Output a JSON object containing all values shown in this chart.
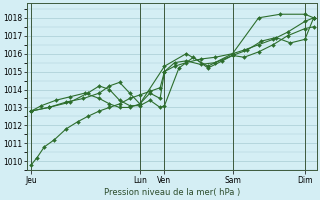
{
  "background_color": "#d4eef4",
  "grid_color": "#a8ccd4",
  "line_color": "#2d6e2d",
  "marker_color": "#2d6e2d",
  "xlabel": "Pression niveau de la mer( hPa )",
  "ylim": [
    1009.5,
    1018.8
  ],
  "yticks": [
    1010,
    1011,
    1012,
    1013,
    1014,
    1015,
    1016,
    1017,
    1018
  ],
  "xlim": [
    0,
    20
  ],
  "day_labels": [
    "Jeu",
    "Lun",
    "Ven",
    "Sam",
    "Dim"
  ],
  "day_tick_x": [
    0.3,
    7.8,
    9.5,
    14.2,
    19.2
  ],
  "vline_x": [
    0.3,
    7.8,
    9.5,
    14.2,
    19.2
  ],
  "s1_x": [
    0.3,
    0.7,
    1.2,
    1.9,
    2.7,
    3.5,
    4.2,
    5.0,
    5.7,
    6.4,
    7.1,
    7.8,
    8.5,
    9.2,
    9.5,
    10.2,
    11.0,
    12.0,
    13.0,
    14.2,
    15.0,
    16.0,
    17.0,
    18.0,
    19.2,
    19.8
  ],
  "s1_y": [
    1009.8,
    1010.2,
    1010.8,
    1011.2,
    1011.8,
    1012.2,
    1012.5,
    1012.8,
    1013.0,
    1013.2,
    1013.5,
    1013.7,
    1013.9,
    1014.1,
    1015.0,
    1015.3,
    1015.5,
    1015.7,
    1015.8,
    1016.0,
    1016.2,
    1016.5,
    1016.8,
    1017.2,
    1017.8,
    1018.0
  ],
  "s2_x": [
    0.3,
    1.0,
    2.0,
    3.0,
    4.0,
    5.0,
    5.7,
    6.4,
    7.1,
    7.8,
    8.5,
    9.2,
    9.5,
    10.2,
    11.0,
    12.0,
    13.0,
    14.2,
    15.0,
    16.0,
    17.0,
    18.0,
    19.2,
    19.8
  ],
  "s2_y": [
    1012.8,
    1013.1,
    1013.4,
    1013.6,
    1013.8,
    1013.5,
    1013.2,
    1013.0,
    1013.0,
    1013.2,
    1013.8,
    1013.5,
    1015.0,
    1015.5,
    1015.6,
    1015.4,
    1015.5,
    1015.9,
    1015.8,
    1016.1,
    1016.5,
    1017.0,
    1017.4,
    1017.5
  ],
  "s3_x": [
    0.3,
    1.5,
    2.7,
    3.9,
    5.0,
    5.7,
    6.4,
    7.1,
    7.8,
    9.5,
    11.0,
    12.5,
    14.2,
    16.0,
    17.5,
    19.2,
    19.8
  ],
  "s3_y": [
    1012.8,
    1013.0,
    1013.3,
    1013.5,
    1013.8,
    1014.2,
    1014.4,
    1013.8,
    1013.2,
    1015.3,
    1016.0,
    1015.3,
    1016.0,
    1018.0,
    1018.2,
    1018.2,
    1018.0
  ],
  "s4_x": [
    0.3,
    1.5,
    3.0,
    4.2,
    5.0,
    5.7,
    6.4,
    7.1,
    7.8,
    8.5,
    9.2,
    9.5,
    10.5,
    11.5,
    12.5,
    13.5,
    14.2,
    15.2,
    16.2,
    17.2,
    18.2,
    19.2,
    19.8
  ],
  "s4_y": [
    1012.8,
    1013.0,
    1013.3,
    1013.8,
    1014.2,
    1014.0,
    1013.4,
    1013.1,
    1013.1,
    1013.4,
    1013.0,
    1013.1,
    1015.2,
    1015.8,
    1015.2,
    1015.6,
    1015.9,
    1016.2,
    1016.7,
    1016.9,
    1016.6,
    1016.8,
    1018.0
  ]
}
